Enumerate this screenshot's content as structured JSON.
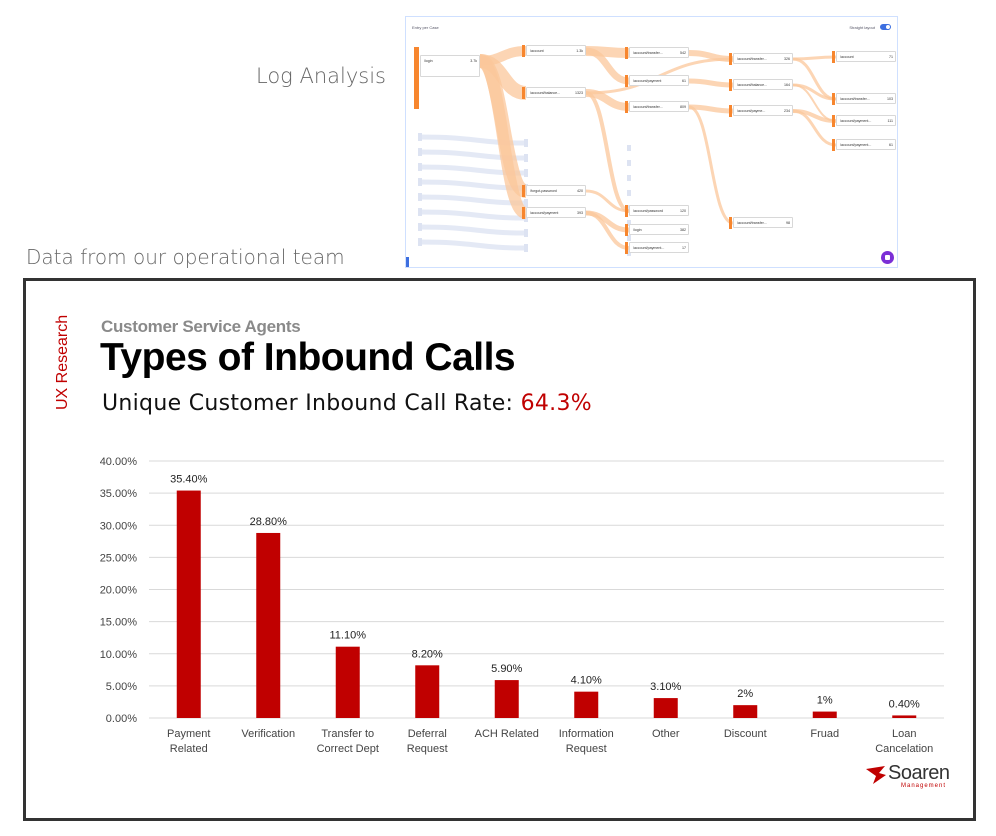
{
  "labels": {
    "log_analysis": "Log Analysis",
    "ops_team": "Data from our operational team"
  },
  "sankey": {
    "header_left": "Entry per Case",
    "header_right": "Straight layout",
    "nodes": [
      {
        "label": "/login",
        "value": "3.7k"
      },
      {
        "label": "/account",
        "value": "1.3k"
      },
      {
        "label": "/account/balance...",
        "value": "1323"
      },
      {
        "label": "/forgot-password",
        "value": "420"
      },
      {
        "label": "/account/payment",
        "value": "393"
      },
      {
        "label": "/account/transfer...",
        "value": "542"
      },
      {
        "label": "/account/payment",
        "value": "61"
      },
      {
        "label": "/account/transfer...",
        "value": "809"
      },
      {
        "label": "/account/password",
        "value": "120"
      },
      {
        "label": "/login",
        "value": "382"
      },
      {
        "label": "/account/payment...",
        "value": "17"
      },
      {
        "label": "/account/transfer...",
        "value": "326"
      },
      {
        "label": "/account/balance...",
        "value": "164"
      },
      {
        "label": "/account/payme...",
        "value": "234"
      },
      {
        "label": "/account/transfer...",
        "value": "98"
      },
      {
        "label": "/account",
        "value": "71"
      },
      {
        "label": "/account/transfer...",
        "value": "103"
      },
      {
        "label": "/account/payment...",
        "value": "111"
      },
      {
        "label": "/account/payment...",
        "value": "61"
      }
    ],
    "colors": {
      "accent": "#f7862e",
      "link": "#fbc79b",
      "faint": "#dde3f2"
    }
  },
  "panel": {
    "side_tag": "UX Research",
    "eyebrow": "Customer Service Agents",
    "title": "Types of Inbound Calls",
    "rate_label": "Unique Customer Inbound Call Rate:",
    "rate_value": "64.3%",
    "logo_name": "Soaren",
    "logo_sub": "Management",
    "colors": {
      "bar": "#c00000",
      "grid": "#d9d9d9",
      "accent_text": "#c00000"
    }
  },
  "chart_data": {
    "type": "bar",
    "categories": [
      [
        "Payment",
        "Related"
      ],
      [
        "Verification"
      ],
      [
        "Transfer to",
        "Correct Dept"
      ],
      [
        "Deferral",
        "Request"
      ],
      [
        "ACH Related"
      ],
      [
        "Information",
        "Request"
      ],
      [
        "Other"
      ],
      [
        "Discount"
      ],
      [
        "Fruad"
      ],
      [
        "Loan",
        "Cancelation"
      ]
    ],
    "values": [
      35.4,
      28.8,
      11.1,
      8.2,
      5.9,
      4.1,
      3.1,
      2,
      1,
      0.4
    ],
    "data_labels": [
      "35.40%",
      "28.80%",
      "11.10%",
      "8.20%",
      "5.90%",
      "4.10%",
      "3.10%",
      "2%",
      "1%",
      "0.40%"
    ],
    "y_ticks": [
      "0.00%",
      "5.00%",
      "10.00%",
      "15.00%",
      "20.00%",
      "25.00%",
      "30.00%",
      "35.00%",
      "40.00%"
    ],
    "ylim": [
      0,
      40
    ],
    "grid": true
  }
}
